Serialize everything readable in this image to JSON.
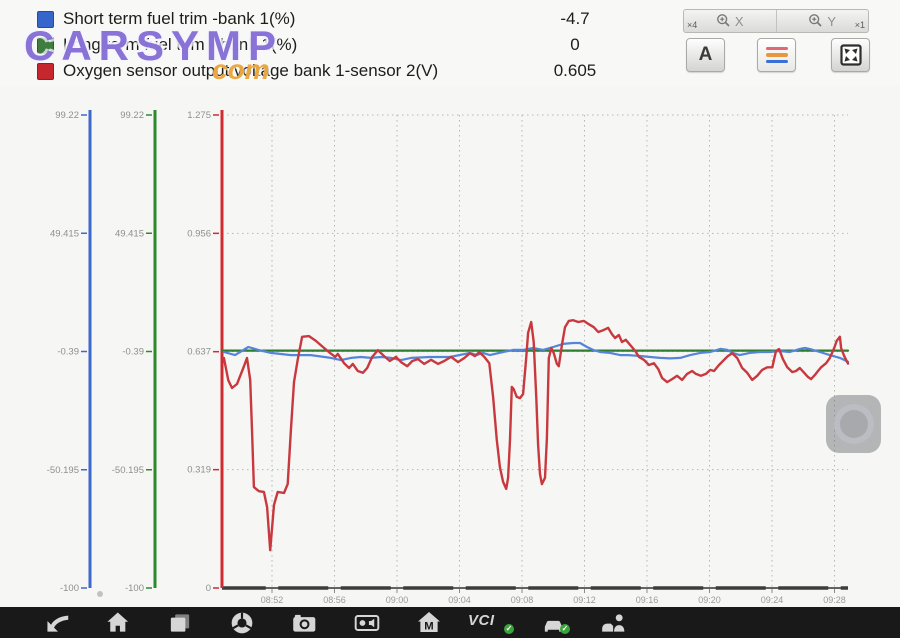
{
  "header": {
    "legend": [
      {
        "label": "Short term fuel trim -bank 1(%)",
        "value": "-4.7",
        "color": "#3666cc"
      },
      {
        "label": "Long term fuel trim - bank 1(%)",
        "value": "0",
        "color": "#3f7d3f"
      },
      {
        "label": "Oxygen sensor output voltage bank 1-sensor 2(V)",
        "value": "0.605",
        "color": "#c6262e"
      }
    ]
  },
  "watermark": {
    "text": "CARSYMP",
    "suffix": "com"
  },
  "toolbar": {
    "zoom_x_factor": "×4",
    "zoom_x_axis": "X",
    "zoom_y_axis": "Y",
    "zoom_y_factor": "×1",
    "a_label": "A"
  },
  "navbar": {
    "vci_label": "VCI",
    "m_label": "M"
  },
  "chart_data": {
    "type": "line",
    "x_labels": [
      "08:52",
      "08:56",
      "09:00",
      "09:04",
      "09:08",
      "09:12",
      "09:16",
      "09:20",
      "09:24",
      "09:28"
    ],
    "grid": true,
    "y_axes": [
      {
        "id": "percent-blue",
        "color": "#3d68cc",
        "range": [
          -100,
          99.22
        ],
        "tick_labels": [
          "99.22",
          "49.415",
          "-0.39",
          "-50.195",
          "-100"
        ],
        "tick_values": [
          99.22,
          49.415,
          -0.39,
          -50.195,
          -100
        ]
      },
      {
        "id": "percent-green",
        "color": "#2c8a2c",
        "range": [
          -100,
          99.22
        ],
        "tick_labels": [
          "99.22",
          "49.415",
          "-0.39",
          "-50.195",
          "-100"
        ],
        "tick_values": [
          99.22,
          49.415,
          -0.39,
          -50.195,
          -100
        ]
      },
      {
        "id": "volts-red",
        "color": "#cf2b31",
        "range": [
          0,
          1.275
        ],
        "tick_labels": [
          "1.275",
          "0.956",
          "0.637",
          "0.319",
          "0"
        ],
        "tick_values": [
          1.275,
          0.956,
          0.637,
          0.319,
          0
        ]
      }
    ],
    "series": [
      {
        "name": "Long term fuel trim - bank 1(%)",
        "axis": "percent",
        "color": "#2f7d31",
        "width": 2.2,
        "points": [
          [
            0,
            0
          ],
          [
            1,
            0
          ]
        ]
      },
      {
        "name": "Short term fuel trim -bank 1(%)",
        "axis": "percent",
        "color": "#5585d8",
        "width": 2.2,
        "points": [
          [
            0.003,
            -0.6
          ],
          [
            0.021,
            -1.9
          ],
          [
            0.042,
            1.5
          ],
          [
            0.058,
            0.3
          ],
          [
            0.078,
            -1.0
          ],
          [
            0.11,
            -1.9
          ],
          [
            0.142,
            -1.9
          ],
          [
            0.174,
            -3.1
          ],
          [
            0.19,
            -4.0
          ],
          [
            0.206,
            -3.1
          ],
          [
            0.222,
            -2.7
          ],
          [
            0.238,
            -3.1
          ],
          [
            0.254,
            -2.7
          ],
          [
            0.27,
            -3.1
          ],
          [
            0.286,
            -4.0
          ],
          [
            0.302,
            -3.1
          ],
          [
            0.332,
            -2.7
          ],
          [
            0.364,
            -2.7
          ],
          [
            0.396,
            -1.0
          ],
          [
            0.407,
            -1.9
          ],
          [
            0.417,
            -1.0
          ],
          [
            0.428,
            -1.9
          ],
          [
            0.449,
            -0.6
          ],
          [
            0.465,
            0.3
          ],
          [
            0.481,
            0.3
          ],
          [
            0.497,
            1.1
          ],
          [
            0.513,
            0.3
          ],
          [
            0.529,
            1.5
          ],
          [
            0.545,
            2.8
          ],
          [
            0.561,
            3.2
          ],
          [
            0.572,
            3.2
          ],
          [
            0.583,
            1.5
          ],
          [
            0.593,
            0.3
          ],
          [
            0.604,
            -0.6
          ],
          [
            0.62,
            -1.0
          ],
          [
            0.636,
            -1.9
          ],
          [
            0.649,
            -1.9
          ],
          [
            0.668,
            -2.3
          ],
          [
            0.684,
            -2.7
          ],
          [
            0.7,
            -3.1
          ],
          [
            0.716,
            -3.3
          ],
          [
            0.732,
            -3.1
          ],
          [
            0.748,
            -1.9
          ],
          [
            0.764,
            -1.0
          ],
          [
            0.78,
            -0.6
          ],
          [
            0.796,
            0.7
          ],
          [
            0.807,
            0.3
          ],
          [
            0.816,
            -1.0
          ],
          [
            0.827,
            -1.9
          ],
          [
            0.843,
            -1.0
          ],
          [
            0.859,
            -0.6
          ],
          [
            0.875,
            -0.6
          ],
          [
            0.891,
            -0.2
          ],
          [
            0.907,
            -0.6
          ],
          [
            0.923,
            0.7
          ],
          [
            0.931,
            1.1
          ],
          [
            0.939,
            0.7
          ],
          [
            0.955,
            -0.6
          ],
          [
            0.971,
            -1.9
          ],
          [
            0.987,
            -3.1
          ],
          [
            1.0,
            -4.7
          ]
        ]
      },
      {
        "name": "Oxygen sensor output voltage bank 1-sensor 2(V)",
        "axis": "volts",
        "color": "#c8393f",
        "width": 2.4,
        "points": [
          [
            0.003,
            0.62
          ],
          [
            0.01,
            0.56
          ],
          [
            0.016,
            0.539
          ],
          [
            0.024,
            0.55
          ],
          [
            0.034,
            0.593
          ],
          [
            0.04,
            0.62
          ],
          [
            0.045,
            0.561
          ],
          [
            0.048,
            0.426
          ],
          [
            0.051,
            0.272
          ],
          [
            0.059,
            0.261
          ],
          [
            0.067,
            0.259
          ],
          [
            0.072,
            0.218
          ],
          [
            0.077,
            0.102
          ],
          [
            0.083,
            0.224
          ],
          [
            0.089,
            0.259
          ],
          [
            0.099,
            0.256
          ],
          [
            0.105,
            0.28
          ],
          [
            0.11,
            0.426
          ],
          [
            0.115,
            0.555
          ],
          [
            0.121,
            0.615
          ],
          [
            0.128,
            0.677
          ],
          [
            0.139,
            0.679
          ],
          [
            0.15,
            0.666
          ],
          [
            0.161,
            0.65
          ],
          [
            0.173,
            0.633
          ],
          [
            0.181,
            0.623
          ],
          [
            0.185,
            0.631
          ],
          [
            0.195,
            0.606
          ],
          [
            0.203,
            0.593
          ],
          [
            0.209,
            0.604
          ],
          [
            0.217,
            0.585
          ],
          [
            0.225,
            0.58
          ],
          [
            0.232,
            0.593
          ],
          [
            0.24,
            0.623
          ],
          [
            0.249,
            0.641
          ],
          [
            0.259,
            0.625
          ],
          [
            0.268,
            0.612
          ],
          [
            0.278,
            0.623
          ],
          [
            0.286,
            0.609
          ],
          [
            0.296,
            0.598
          ],
          [
            0.304,
            0.612
          ],
          [
            0.313,
            0.617
          ],
          [
            0.323,
            0.604
          ],
          [
            0.334,
            0.615
          ],
          [
            0.345,
            0.604
          ],
          [
            0.355,
            0.612
          ],
          [
            0.366,
            0.623
          ],
          [
            0.377,
            0.609
          ],
          [
            0.387,
            0.62
          ],
          [
            0.396,
            0.633
          ],
          [
            0.404,
            0.625
          ],
          [
            0.411,
            0.636
          ],
          [
            0.419,
            0.623
          ],
          [
            0.427,
            0.606
          ],
          [
            0.433,
            0.515
          ],
          [
            0.439,
            0.399
          ],
          [
            0.444,
            0.326
          ],
          [
            0.449,
            0.286
          ],
          [
            0.454,
            0.267
          ],
          [
            0.457,
            0.297
          ],
          [
            0.46,
            0.399
          ],
          [
            0.463,
            0.542
          ],
          [
            0.466,
            0.536
          ],
          [
            0.471,
            0.515
          ],
          [
            0.476,
            0.512
          ],
          [
            0.481,
            0.523
          ],
          [
            0.486,
            0.62
          ],
          [
            0.489,
            0.688
          ],
          [
            0.494,
            0.717
          ],
          [
            0.498,
            0.663
          ],
          [
            0.502,
            0.512
          ],
          [
            0.505,
            0.386
          ],
          [
            0.508,
            0.307
          ],
          [
            0.511,
            0.28
          ],
          [
            0.516,
            0.297
          ],
          [
            0.519,
            0.404
          ],
          [
            0.522,
            0.62
          ],
          [
            0.526,
            0.647
          ],
          [
            0.53,
            0.633
          ],
          [
            0.535,
            0.604
          ],
          [
            0.538,
            0.598
          ],
          [
            0.543,
            0.655
          ],
          [
            0.548,
            0.703
          ],
          [
            0.554,
            0.72
          ],
          [
            0.561,
            0.722
          ],
          [
            0.569,
            0.717
          ],
          [
            0.578,
            0.72
          ],
          [
            0.586,
            0.711
          ],
          [
            0.594,
            0.703
          ],
          [
            0.601,
            0.69
          ],
          [
            0.609,
            0.695
          ],
          [
            0.617,
            0.701
          ],
          [
            0.623,
            0.684
          ],
          [
            0.628,
            0.674
          ],
          [
            0.634,
            0.682
          ],
          [
            0.639,
            0.663
          ],
          [
            0.645,
            0.669
          ],
          [
            0.652,
            0.655
          ],
          [
            0.66,
            0.639
          ],
          [
            0.666,
            0.623
          ],
          [
            0.674,
            0.615
          ],
          [
            0.682,
            0.601
          ],
          [
            0.69,
            0.606
          ],
          [
            0.697,
            0.59
          ],
          [
            0.703,
            0.566
          ],
          [
            0.711,
            0.555
          ],
          [
            0.719,
            0.563
          ],
          [
            0.727,
            0.572
          ],
          [
            0.735,
            0.561
          ],
          [
            0.743,
            0.577
          ],
          [
            0.751,
            0.585
          ],
          [
            0.757,
            0.577
          ],
          [
            0.765,
            0.572
          ],
          [
            0.773,
            0.577
          ],
          [
            0.78,
            0.588
          ],
          [
            0.786,
            0.585
          ],
          [
            0.794,
            0.601
          ],
          [
            0.802,
            0.615
          ],
          [
            0.808,
            0.625
          ],
          [
            0.815,
            0.633
          ],
          [
            0.823,
            0.62
          ],
          [
            0.831,
            0.593
          ],
          [
            0.839,
            0.58
          ],
          [
            0.847,
            0.561
          ],
          [
            0.855,
            0.572
          ],
          [
            0.863,
            0.588
          ],
          [
            0.871,
            0.595
          ],
          [
            0.879,
            0.595
          ],
          [
            0.885,
            0.639
          ],
          [
            0.89,
            0.644
          ],
          [
            0.896,
            0.617
          ],
          [
            0.903,
            0.595
          ],
          [
            0.911,
            0.582
          ],
          [
            0.917,
            0.585
          ],
          [
            0.923,
            0.593
          ],
          [
            0.93,
            0.58
          ],
          [
            0.936,
            0.569
          ],
          [
            0.941,
            0.563
          ],
          [
            0.947,
            0.574
          ],
          [
            0.952,
            0.585
          ],
          [
            0.957,
            0.595
          ],
          [
            0.965,
            0.606
          ],
          [
            0.971,
            0.62
          ],
          [
            0.978,
            0.647
          ],
          [
            0.982,
            0.666
          ],
          [
            0.987,
            0.677
          ],
          [
            0.989,
            0.647
          ],
          [
            0.994,
            0.625
          ],
          [
            1.0,
            0.605
          ]
        ]
      }
    ]
  }
}
